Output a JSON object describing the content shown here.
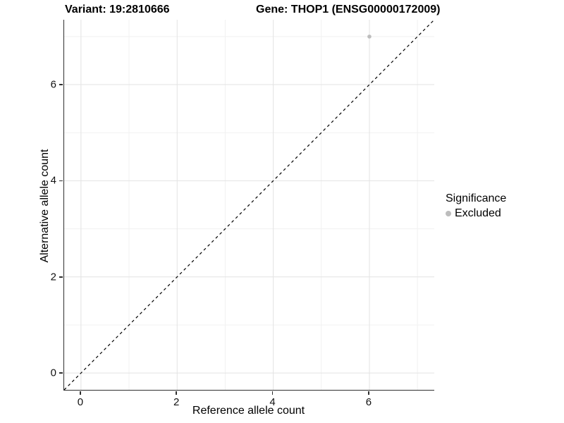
{
  "titles": {
    "left": "Variant: 19:2810666",
    "right": "Gene: THOP1 (ENSG00000172009)"
  },
  "chart_data": {
    "type": "scatter",
    "title_left": "Variant: 19:2810666",
    "title_right": "Gene: THOP1 (ENSG00000172009)",
    "xlabel": "Reference allele count",
    "ylabel": "Alternative allele count",
    "xlim": [
      -0.35,
      7.35
    ],
    "ylim": [
      -0.35,
      7.35
    ],
    "x_ticks": [
      0,
      2,
      4,
      6
    ],
    "y_ticks": [
      0,
      2,
      4,
      6
    ],
    "minor_gridlines": [
      1,
      3,
      5,
      7
    ],
    "grid": true,
    "points": [
      {
        "x": 6,
        "y": 7,
        "series": "Excluded"
      }
    ],
    "reference_line": {
      "kind": "diagonal",
      "equation": "y = x",
      "style": "dashed",
      "color": "#000000"
    },
    "legend": {
      "title": "Significance",
      "position": "right",
      "entries": [
        {
          "label": "Excluded",
          "color": "#bdbdbd",
          "marker": "circle"
        }
      ]
    },
    "colors": {
      "point": "#bdbdbd",
      "grid_major": "#e3e3e3",
      "grid_minor": "#f1f1f1",
      "axis_line": "#303030"
    }
  }
}
